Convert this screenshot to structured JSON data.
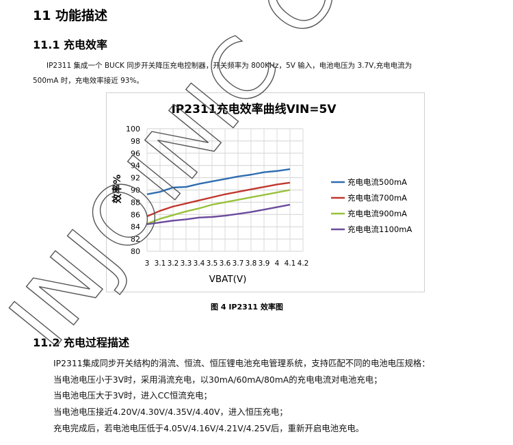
{
  "section_title": "11 功能描述",
  "subsection1_title": "11.1  充电效率",
  "paragraph1_line1": "IP2311 集成一个 BUCK 同步开关降压充电控制器，开关频率为 800KHz，5V 输入，电池电压为 3.7V,充电电流为",
  "paragraph1_line2": "500mA 时，充电效率接近 93%。",
  "figure_caption": "图 4      IP2311 效率图",
  "subsection2_title": "11.2 充电过程描述",
  "paragraph2_lines": [
    "IP2311集成同步开关结构的涓流、恒流、恒压锂电池充电管理系统，支持匹配不同的电池电压规格：",
    "当电池电压小于3V时，采用涓流充电，以30mA/60mA/80mA的充电电流对电池充电；",
    "当电池电压大于3V时，进入CC恒流充电；",
    "当电池电压接近4.20V/4.30V/4.35V/4.40V，进入恒压充电；",
    "充电完成后，若电池电压低于4.05V/4.16V/4.21V/4.25V后，重新开启电池充电。"
  ],
  "watermark_text": "INJOINIC Corp.",
  "chart_data": {
    "type": "line",
    "title": "IP2311充电效率曲线VIN=5V",
    "xlabel": "VBAT(V)",
    "ylabel": "效率%",
    "x": [
      3,
      3.1,
      3.2,
      3.3,
      3.4,
      3.5,
      3.6,
      3.7,
      3.8,
      3.9,
      4,
      4.1
    ],
    "x_ticks": [
      "3",
      "3.1",
      "3.2",
      "3.3",
      "3.4",
      "3.5",
      "3.6",
      "3.7",
      "3.8",
      "3.9",
      "4",
      "4.1",
      "4.2"
    ],
    "xlim": [
      3,
      4.2
    ],
    "ylim": [
      80,
      100
    ],
    "y_ticks": [
      "80",
      "82",
      "84",
      "86",
      "88",
      "90",
      "92",
      "94",
      "96",
      "98",
      "100"
    ],
    "grid": true,
    "legend_position": "right",
    "series": [
      {
        "name": "充电电流500mA",
        "color": "#2e6db0",
        "values": [
          89.3,
          89.7,
          90.4,
          90.5,
          91.0,
          91.4,
          91.8,
          92.2,
          92.5,
          92.9,
          93.1,
          93.4
        ]
      },
      {
        "name": "充电电流700mA",
        "color": "#c0372e",
        "values": [
          85.7,
          86.6,
          87.3,
          87.8,
          88.3,
          88.8,
          89.3,
          89.7,
          90.1,
          90.5,
          90.9,
          91.2
        ]
      },
      {
        "name": "充电电流900mA",
        "color": "#98c13a",
        "values": [
          84.5,
          85.3,
          85.9,
          86.5,
          87.0,
          87.6,
          88.0,
          88.4,
          88.8,
          89.2,
          89.6,
          90.0
        ]
      },
      {
        "name": "充电电流1100mA",
        "color": "#6b4a9e",
        "values": [
          84.4,
          84.7,
          85.0,
          85.2,
          85.5,
          85.6,
          85.8,
          86.1,
          86.4,
          86.8,
          87.2,
          87.6
        ]
      }
    ]
  }
}
